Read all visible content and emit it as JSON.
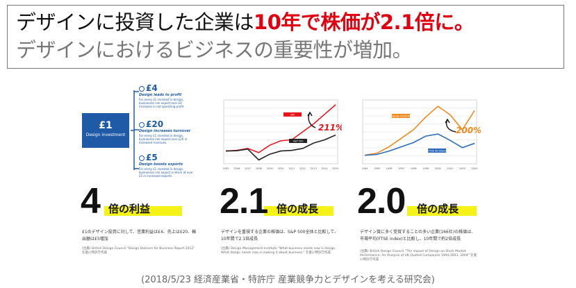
{
  "headline": {
    "line1_prefix": "デザインに投資した企業は",
    "line1_emphasis": "10年で株価が2.1倍に。",
    "line2": "デザインにおけるビジネスの重要性が増加。"
  },
  "figure1": {
    "box_amount": "£1",
    "box_label": "Design investment",
    "items": [
      {
        "amount": "£4",
        "title": "Design leads to profit",
        "desc": "For every £1 invested in design, businesses can expect over £4 increases in net operating profit."
      },
      {
        "amount": "£20",
        "title": "Design increases turnover",
        "desc": "For every £1 invested in design, businesses can expect over £20 in increased revenues."
      },
      {
        "amount": "£5",
        "title": "Design boosts exports",
        "desc": "For every £1 invested in design, businesses can expect a return of over £5 in increased exports."
      }
    ]
  },
  "chart1": {
    "type": "line",
    "x_labels": [
      "2005",
      "2006",
      "2007",
      "2008",
      "2009",
      "2010",
      "2011",
      "2012",
      "2013",
      "2014",
      "2015"
    ],
    "series": [
      {
        "name": "DVI",
        "color": "#e8141c",
        "values": [
          100,
          102,
          108,
          95,
          118,
          132,
          135,
          160,
          185,
          215,
          245
        ]
      },
      {
        "name": "S&P 500",
        "color": "#222222",
        "values": [
          100,
          101,
          106,
          72,
          90,
          100,
          102,
          108,
          125,
          135,
          150
        ]
      }
    ],
    "ylim": [
      60,
      260
    ],
    "annotation": "211%",
    "annotation_color": "#e8141c"
  },
  "chart2": {
    "type": "line",
    "x_labels": [
      "1994",
      "1995",
      "1996",
      "1997",
      "1998",
      "1999",
      "2000",
      "2001",
      "2002",
      "2003"
    ],
    "series": [
      {
        "name": "Design Portfolio",
        "color": "#f08a1c",
        "values": [
          100,
          105,
          120,
          140,
          160,
          190,
          215,
          195,
          160,
          205
        ]
      },
      {
        "name": "FTSE All-Share",
        "color": "#2e6bbf",
        "values": [
          100,
          102,
          110,
          120,
          130,
          145,
          150,
          135,
          118,
          128
        ]
      }
    ],
    "ylim": [
      80,
      230
    ],
    "annotation": "200%",
    "annotation_color": "#f08a1c"
  },
  "stats": [
    {
      "number": "4",
      "label": "倍の利益",
      "desc": "£1のデザイン投資に対して、営業利益は£4、売上は£20、輸出額は£5増加",
      "source": "(出典) British Design Council \"Design Delivers for Business Report 2012\" を基に特許庁作成"
    },
    {
      "number": "2.1",
      "label": "倍の成長",
      "desc": "デザインを重視する企業の株価は、S&P 500全体と比較して、10年間で2.1倍成長",
      "source": "(出典) Design Management Institute \"What business needs now is design. What design needs now is making it about business.\" を基に特許庁作成"
    },
    {
      "number": "2.0",
      "label": "倍の成長",
      "desc": "デザイン賞に多く受賞することの多い企業(166社)の株価は、市場平均(FTSE index)と比較し、10年間で約2倍成長",
      "source": "(出典) British Design Council \"The impact of Design on Stock Market Performance: An Analysis of UK Quoted Companies 1994-2003, 2004\" を基に特許庁作成"
    }
  ],
  "footer": "(2018/5/23 経済産業省・特許庁 産業競争力とデザインを考える研究会)"
}
